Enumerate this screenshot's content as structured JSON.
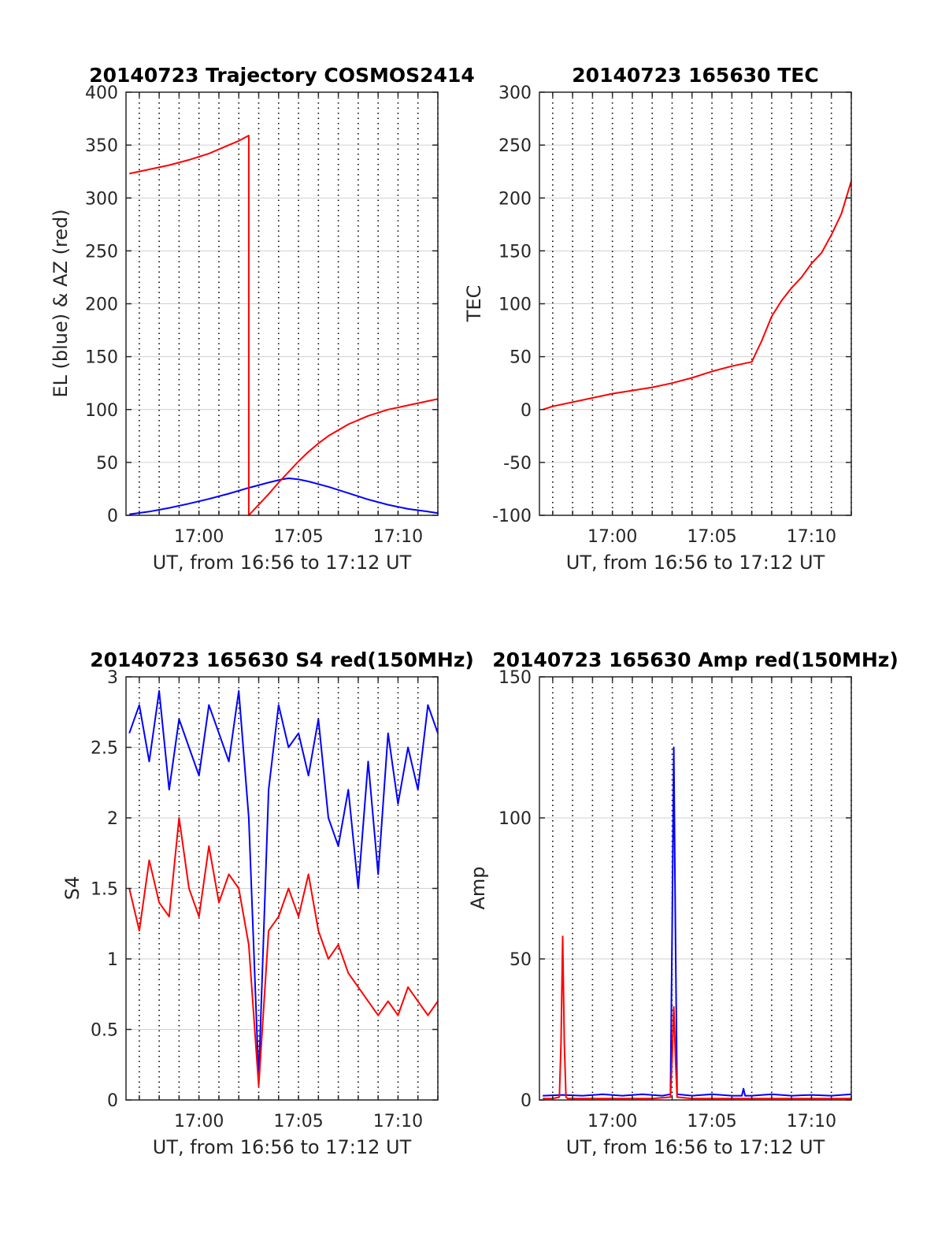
{
  "figure": {
    "background": "#ffffff",
    "colors": {
      "red": "#ff0000",
      "blue": "#0000ff",
      "grid": "#d0d0d0",
      "axis": "#262626"
    }
  },
  "chart_data": [
    {
      "id": "trajectory",
      "type": "line",
      "title": "20140723 Trajectory COSMOS2414",
      "xlabel": "UT, from 16:56 to 17:12 UT",
      "ylabel": "EL (blue) & AZ (red)",
      "xlim": [
        "16:56:20",
        "17:12:00"
      ],
      "ylim": [
        0,
        400
      ],
      "yticks": [
        "0",
        "50",
        "100",
        "150",
        "200",
        "250",
        "300",
        "350",
        "400"
      ],
      "xticks": [
        "17:00",
        "17:05",
        "17:10"
      ],
      "grid": true,
      "series": [
        {
          "name": "EL",
          "color": "blue",
          "x": [
            "16:56:30",
            "16:57:30",
            "16:58:30",
            "16:59:30",
            "17:00:30",
            "17:01:30",
            "17:02:30",
            "17:03:30",
            "17:04:10",
            "17:04:30",
            "17:05:00",
            "17:05:30",
            "17:06:30",
            "17:07:30",
            "17:08:30",
            "17:09:30",
            "17:10:30",
            "17:11:30",
            "17:12:00"
          ],
          "y": [
            1,
            3.5,
            7,
            11,
            15.5,
            20.5,
            26,
            31,
            34,
            35,
            34,
            32,
            27,
            21,
            15,
            10,
            6,
            3.5,
            2
          ]
        },
        {
          "name": "AZ",
          "color": "red",
          "x": [
            "16:56:30",
            "16:57:30",
            "16:58:30",
            "16:59:30",
            "17:00:30",
            "17:01:30",
            "17:02:00",
            "17:02:30",
            "17:02:30",
            "17:03:00",
            "17:03:30",
            "17:04:00",
            "17:04:30",
            "17:05:00",
            "17:05:30",
            "17:06:00",
            "17:06:30",
            "17:07:30",
            "17:08:30",
            "17:09:30",
            "17:10:30",
            "17:11:30",
            "17:12:00"
          ],
          "y": [
            323,
            327,
            331,
            336,
            342,
            350,
            354,
            359,
            0,
            10,
            20,
            31,
            41,
            51,
            60,
            68,
            75,
            86,
            94,
            100,
            104,
            108,
            110
          ]
        }
      ]
    },
    {
      "id": "tec",
      "type": "line",
      "title": "20140723 165630 TEC",
      "xlabel": "UT, from 16:56 to 17:12 UT",
      "ylabel": "TEC",
      "xlim": [
        "16:56:20",
        "17:12:00"
      ],
      "ylim": [
        -100,
        300
      ],
      "yticks": [
        "-100",
        "-50",
        "0",
        "50",
        "100",
        "150",
        "200",
        "250",
        "300"
      ],
      "xticks": [
        "17:00",
        "17:05",
        "17:10"
      ],
      "grid": true,
      "series": [
        {
          "name": "TEC",
          "color": "red",
          "x": [
            "16:56:30",
            "16:57:00",
            "16:58:00",
            "16:59:00",
            "17:00:00",
            "17:01:00",
            "17:02:00",
            "17:03:00",
            "17:04:00",
            "17:05:00",
            "17:06:00",
            "17:07:00",
            "17:07:30",
            "17:08:00",
            "17:08:30",
            "17:09:00",
            "17:09:30",
            "17:10:00",
            "17:10:30",
            "17:11:00",
            "17:11:30",
            "17:12:00"
          ],
          "y": [
            0,
            3,
            7,
            11,
            15,
            18,
            21,
            25,
            30,
            36,
            41,
            45,
            65,
            88,
            103,
            115,
            125,
            138,
            148,
            165,
            185,
            216
          ]
        }
      ]
    },
    {
      "id": "s4",
      "type": "line",
      "title": "20140723 165630 S4 red(150MHz)",
      "xlabel": "UT, from 16:56 to 17:12 UT",
      "ylabel": "S4",
      "xlim": [
        "16:56:20",
        "17:12:00"
      ],
      "ylim": [
        0,
        3
      ],
      "yticks": [
        "0",
        "0.5",
        "1",
        "1.5",
        "2",
        "2.5",
        "3"
      ],
      "xticks": [
        "17:00",
        "17:05",
        "17:10"
      ],
      "grid": true,
      "series": [
        {
          "name": "150MHz",
          "color": "red",
          "x": [
            "16:56:30",
            "16:57:00",
            "16:57:30",
            "16:58:00",
            "16:58:30",
            "16:59:00",
            "16:59:30",
            "17:00:00",
            "17:00:30",
            "17:01:00",
            "17:01:30",
            "17:02:00",
            "17:02:30",
            "17:03:00",
            "17:03:30",
            "17:04:00",
            "17:04:30",
            "17:05:00",
            "17:05:30",
            "17:06:00",
            "17:06:30",
            "17:07:00",
            "17:07:30",
            "17:08:00",
            "17:08:30",
            "17:09:00",
            "17:09:30",
            "17:10:00",
            "17:10:30",
            "17:11:00",
            "17:11:30",
            "17:12:00"
          ],
          "y": [
            1.5,
            1.2,
            1.7,
            1.4,
            1.3,
            2.0,
            1.5,
            1.3,
            1.8,
            1.4,
            1.6,
            1.5,
            1.1,
            0.1,
            1.2,
            1.3,
            1.5,
            1.3,
            1.6,
            1.2,
            1.0,
            1.1,
            0.9,
            0.8,
            0.7,
            0.6,
            0.7,
            0.6,
            0.8,
            0.7,
            0.6,
            0.7
          ]
        },
        {
          "name": "",
          "color": "blue",
          "x": [
            "16:56:30",
            "16:57:00",
            "16:57:30",
            "16:58:00",
            "16:58:30",
            "16:59:00",
            "16:59:30",
            "17:00:00",
            "17:00:30",
            "17:01:00",
            "17:01:30",
            "17:02:00",
            "17:02:30",
            "17:03:00",
            "17:03:30",
            "17:04:00",
            "17:04:30",
            "17:05:00",
            "17:05:30",
            "17:06:00",
            "17:06:30",
            "17:07:00",
            "17:07:30",
            "17:08:00",
            "17:08:30",
            "17:09:00",
            "17:09:30",
            "17:10:00",
            "17:10:30",
            "17:11:00",
            "17:11:30",
            "17:12:00"
          ],
          "y": [
            2.6,
            2.8,
            2.4,
            2.9,
            2.2,
            2.7,
            2.5,
            2.3,
            2.8,
            2.6,
            2.4,
            2.9,
            2.0,
            0.15,
            2.2,
            2.8,
            2.5,
            2.6,
            2.3,
            2.7,
            2.0,
            1.8,
            2.2,
            1.5,
            2.4,
            1.6,
            2.6,
            2.1,
            2.5,
            2.2,
            2.8,
            2.6
          ]
        }
      ]
    },
    {
      "id": "amp",
      "type": "line",
      "title": "20140723 165630 Amp red(150MHz)",
      "xlabel": "UT, from 16:56 to 17:12 UT",
      "ylabel": "Amp",
      "xlim": [
        "16:56:20",
        "17:12:00"
      ],
      "ylim": [
        0,
        150
      ],
      "yticks": [
        "0",
        "50",
        "100",
        "150"
      ],
      "xticks": [
        "17:00",
        "17:05",
        "17:10"
      ],
      "grid": true,
      "series": [
        {
          "name": "150MHz",
          "color": "red",
          "x": [
            "16:56:30",
            "16:57:00",
            "16:57:20",
            "16:57:25",
            "16:57:30",
            "16:57:35",
            "16:57:40",
            "16:57:45",
            "16:58:00",
            "16:59:00",
            "17:00:00",
            "17:01:00",
            "17:02:00",
            "17:02:55",
            "17:03:00",
            "17:03:05",
            "17:03:10",
            "17:03:15",
            "17:04:00",
            "17:05:00",
            "17:06:00",
            "17:07:00",
            "17:08:00",
            "17:09:00",
            "17:10:00",
            "17:11:00",
            "17:12:00"
          ],
          "y": [
            0.5,
            0.5,
            1,
            20,
            58,
            20,
            1,
            0.5,
            0.5,
            0.5,
            0.5,
            0.5,
            0.5,
            1,
            15,
            33,
            15,
            1,
            0.5,
            0.5,
            0.5,
            0.5,
            0.5,
            0.5,
            0.5,
            0.5,
            0.5
          ]
        },
        {
          "name": "",
          "color": "blue",
          "x": [
            "16:56:30",
            "16:57:30",
            "16:58:30",
            "16:59:30",
            "17:00:30",
            "17:01:30",
            "17:02:30",
            "17:02:55",
            "17:03:00",
            "17:03:05",
            "17:03:10",
            "17:03:15",
            "17:04:00",
            "17:05:00",
            "17:06:00",
            "17:06:30",
            "17:06:35",
            "17:06:40",
            "17:07:00",
            "17:08:00",
            "17:09:00",
            "17:10:00",
            "17:11:00",
            "17:12:00"
          ],
          "y": [
            1.5,
            1.8,
            1.5,
            2,
            1.5,
            2,
            1.5,
            2,
            60,
            125,
            60,
            2,
            1.5,
            2,
            1.5,
            1.5,
            4,
            1.5,
            1.5,
            2,
            1.5,
            1.8,
            1.5,
            2
          ]
        }
      ]
    }
  ]
}
